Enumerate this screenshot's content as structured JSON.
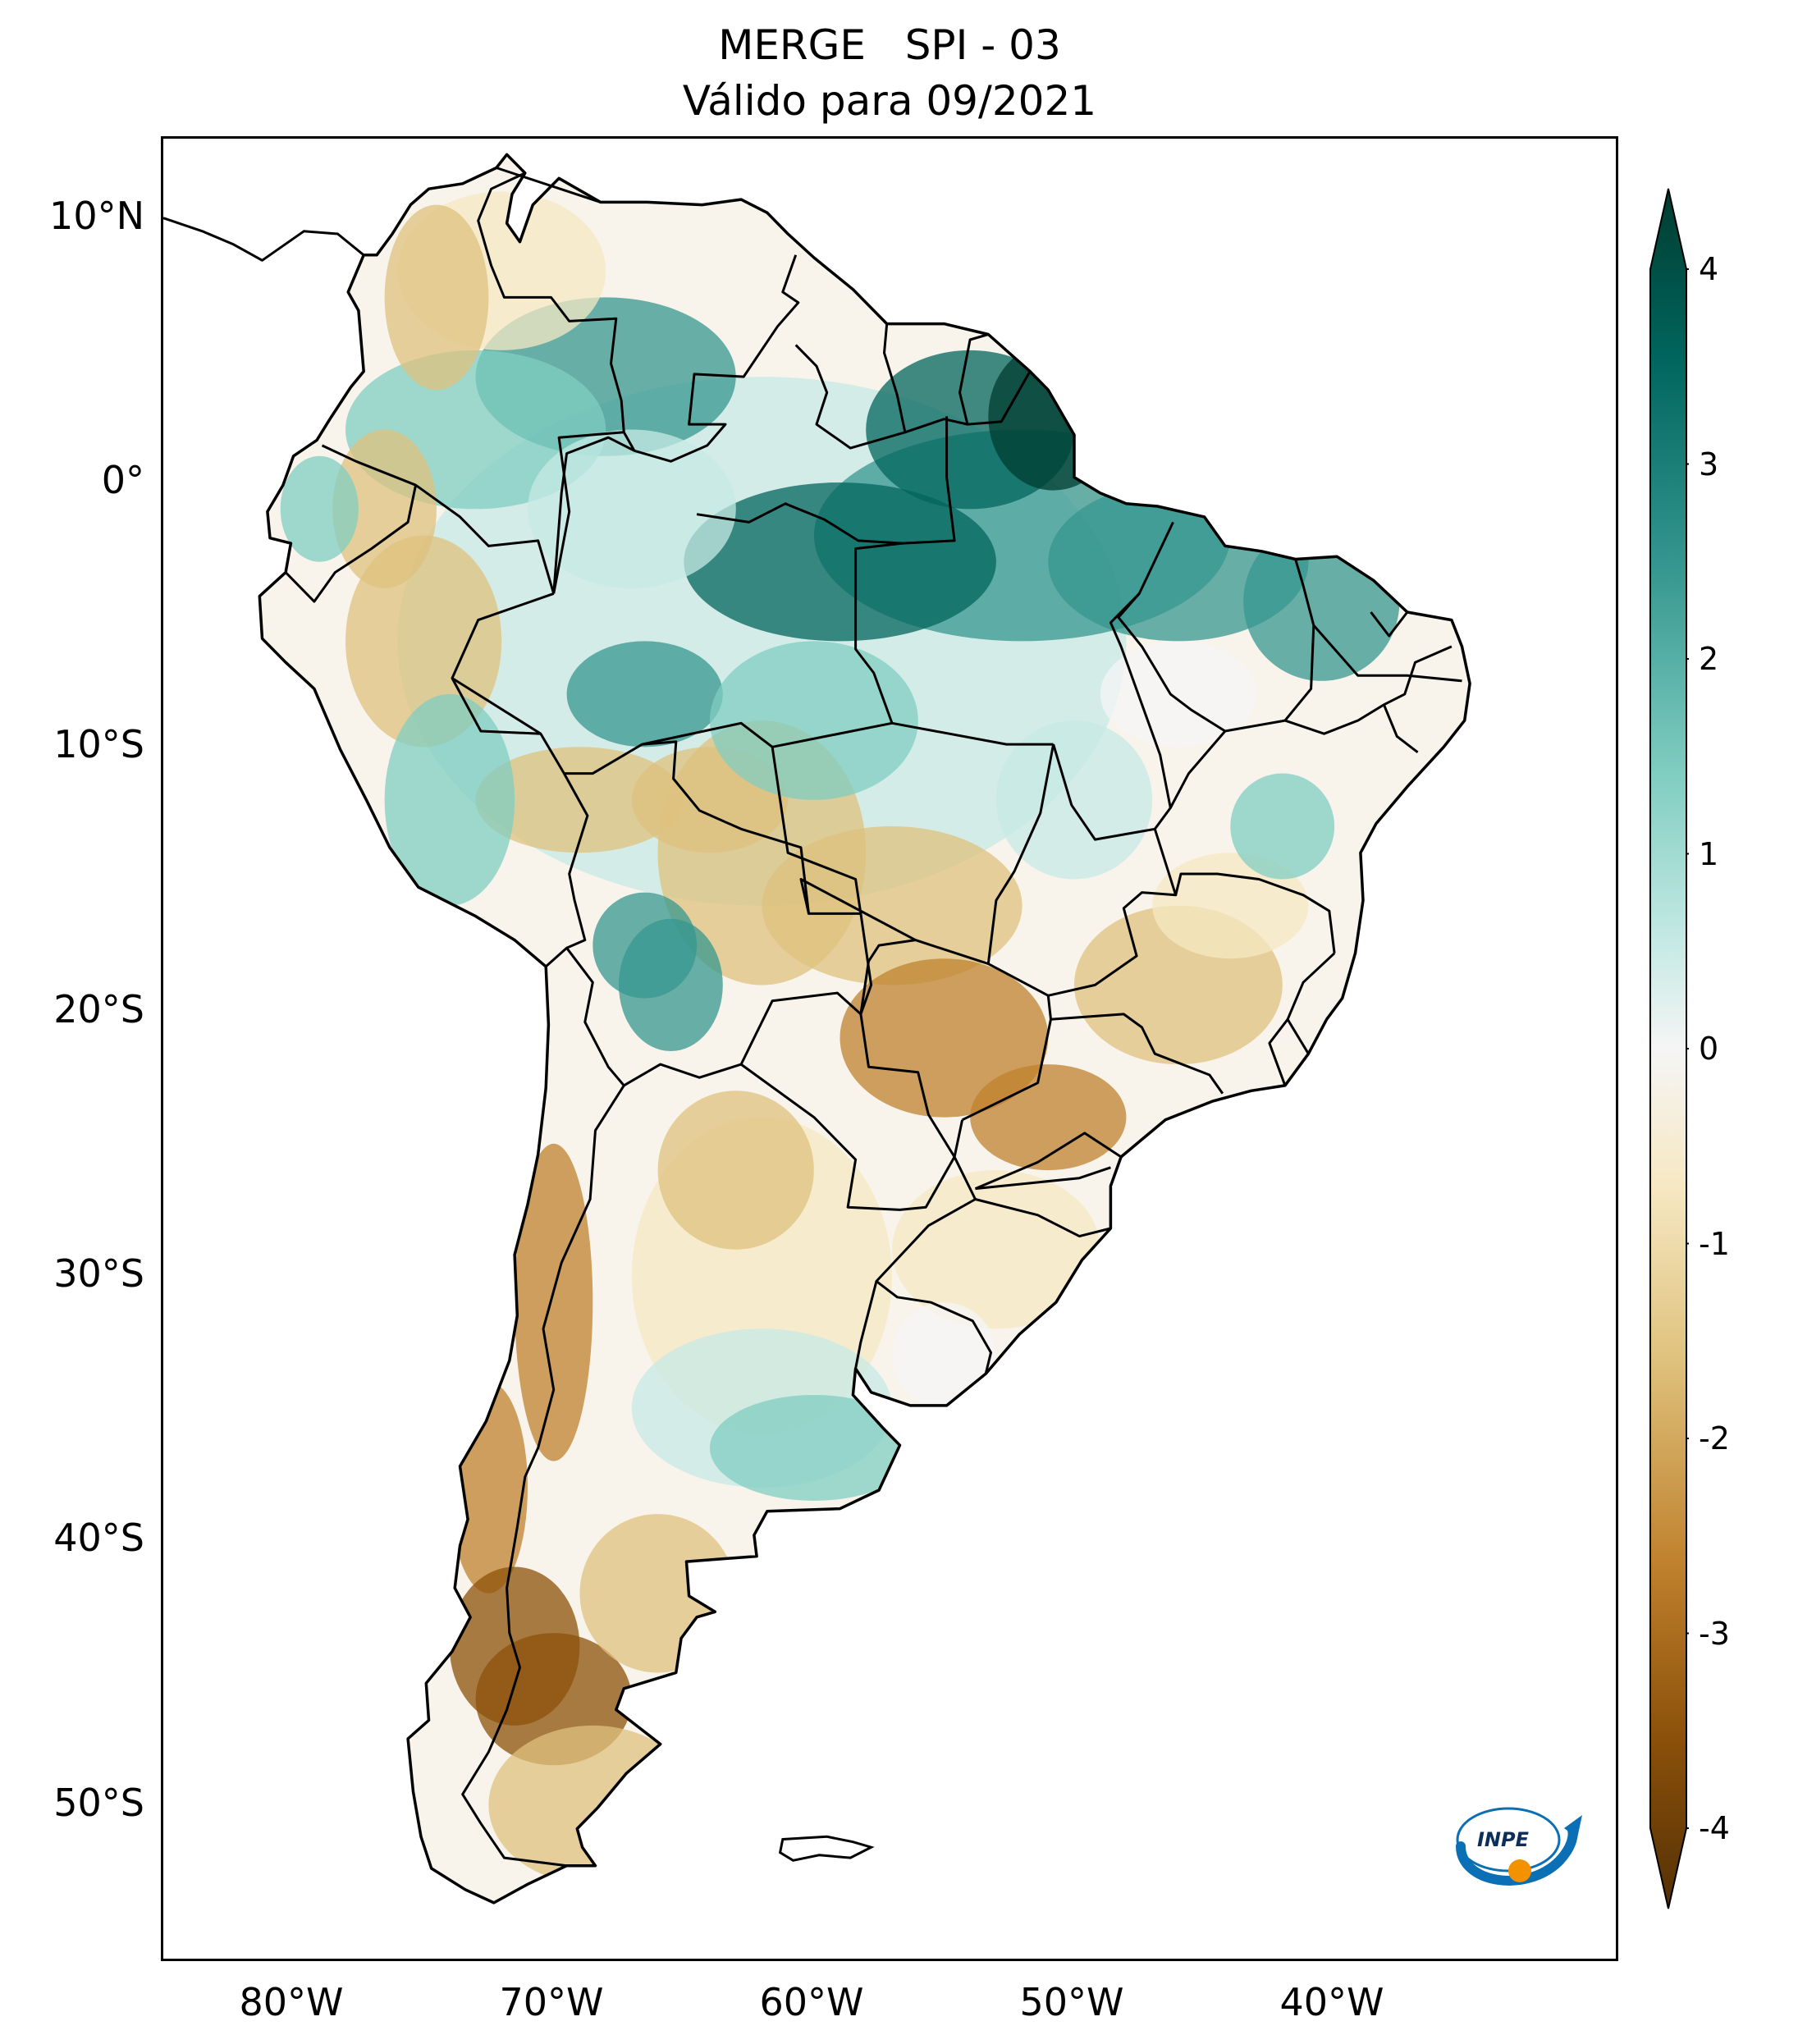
{
  "title": {
    "line1": "MERGE   SPI - 03",
    "line2": "Válido para 09/2021"
  },
  "map": {
    "region": "South America",
    "lon_range": [
      -85,
      -29
    ],
    "lat_range": [
      -56,
      13
    ],
    "lat_labels": [
      "10°N",
      "0°",
      "10°S",
      "20°S",
      "30°S",
      "40°S",
      "50°S"
    ],
    "lat_values": [
      10,
      0,
      -10,
      -20,
      -30,
      -40,
      -50
    ],
    "lon_labels": [
      "80°W",
      "70°W",
      "60°W",
      "50°W",
      "40°W"
    ],
    "lon_values": [
      -80,
      -70,
      -60,
      -50,
      -40
    ]
  },
  "colorbar": {
    "variable": "SPI",
    "range": [
      -4,
      4
    ],
    "tick_labels": [
      "4",
      "3",
      "2",
      "1",
      "0",
      "-1",
      "-2",
      "-3",
      "-4"
    ],
    "tick_values": [
      4,
      3,
      2,
      1,
      0,
      -1,
      -2,
      -3,
      -4
    ],
    "colors": {
      "extreme_wet": "#003c30",
      "wet": "#01665e",
      "moderate_wet": "#35978f",
      "light_wet": "#80cdc1",
      "very_light_wet": "#c7eae5",
      "neutral": "#f5f5f5",
      "very_light_dry": "#f6e8c3",
      "light_dry": "#dfc27d",
      "moderate_dry": "#bf812d",
      "dry": "#8c510a",
      "extreme_dry": "#543005"
    }
  },
  "logo": {
    "text": "INPE",
    "colors": {
      "blue": "#0b6fb6",
      "orange": "#f39200"
    }
  }
}
